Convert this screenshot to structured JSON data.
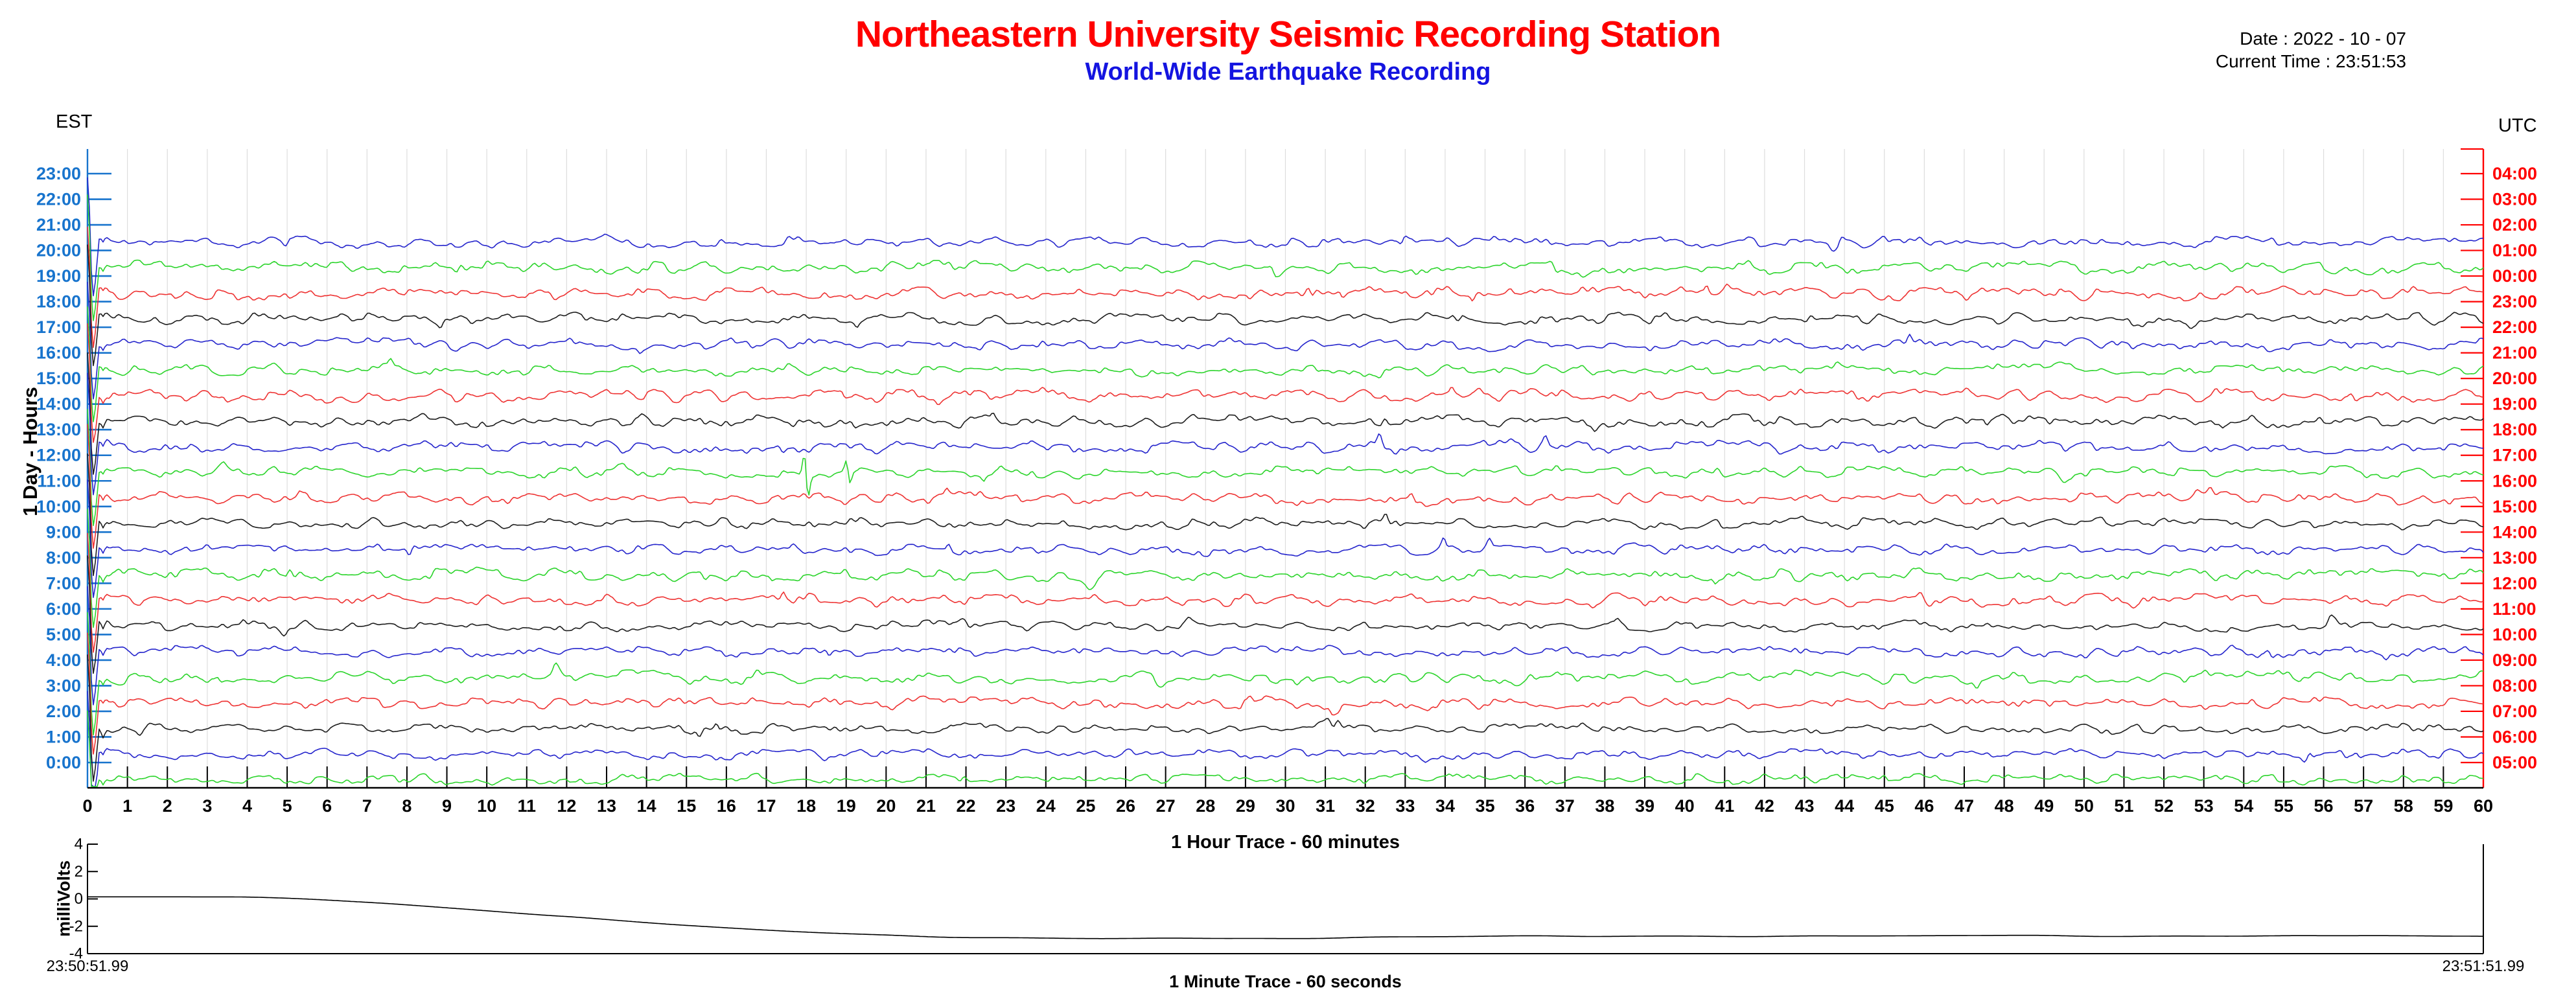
{
  "header": {
    "title": "Northeastern University Seismic Recording Station",
    "subtitle": "World-Wide Earthquake Recording",
    "date_label": "Date : 2022 - 10 - 07",
    "time_label": "Current Time : 23:51:53",
    "left_timezone": "EST",
    "right_timezone": "UTC"
  },
  "colors": {
    "title_red": "#FF0000",
    "subtitle_blue": "#1414E0",
    "left_axis_blue": "#1874CD",
    "right_axis_red": "#FF0000",
    "grid_gray": "#DDDDDD",
    "axis_black": "#000000",
    "trace_palette": {
      "blue": "#2424CC",
      "green": "#2BD42B",
      "red": "#EE3232",
      "black": "#1C1C1C"
    }
  },
  "chart_data": [
    {
      "type": "line",
      "name": "helicorder-24h",
      "description": "24-hour helicorder: one seismic trace per hour, baseline slightly above each hour tick; top 3 hour rows empty; each trace begins with a large settling transient at minute 0; one extra partial-row trace below 0:00",
      "xlabel": "1 Hour Trace - 60 minutes",
      "ylabel": "1 Day - Hours",
      "x_ticks": {
        "min": 0,
        "max": 60,
        "step": 1
      },
      "left_axis_labels": [
        "23:00",
        "22:00",
        "21:00",
        "20:00",
        "19:00",
        "18:00",
        "17:00",
        "16:00",
        "15:00",
        "14:00",
        "13:00",
        "12:00",
        "11:00",
        "10:00",
        "9:00",
        "8:00",
        "7:00",
        "6:00",
        "5:00",
        "4:00",
        "3:00",
        "2:00",
        "1:00",
        "0:00"
      ],
      "right_axis_labels": [
        "04:00",
        "03:00",
        "02:00",
        "01:00",
        "00:00",
        "23:00",
        "22:00",
        "21:00",
        "20:00",
        "19:00",
        "18:00",
        "17:00",
        "16:00",
        "15:00",
        "14:00",
        "13:00",
        "12:00",
        "11:00",
        "10:00",
        "09:00",
        "08:00",
        "07:00",
        "06:00",
        "05:00"
      ],
      "empty_top_rows": 3,
      "traces": [
        {
          "row": 3,
          "est": "20:00",
          "color": "blue",
          "seed": 101,
          "amp": 1.0
        },
        {
          "row": 4,
          "est": "19:00",
          "color": "green",
          "seed": 102,
          "amp": 1.1
        },
        {
          "row": 5,
          "est": "18:00",
          "color": "red",
          "seed": 103,
          "amp": 1.15
        },
        {
          "row": 6,
          "est": "17:00",
          "color": "black",
          "seed": 104,
          "amp": 1.0
        },
        {
          "row": 7,
          "est": "16:00",
          "color": "blue",
          "seed": 105,
          "amp": 1.05
        },
        {
          "row": 8,
          "est": "15:00",
          "color": "green",
          "seed": 106,
          "amp": 1.05
        },
        {
          "row": 9,
          "est": "14:00",
          "color": "red",
          "seed": 107,
          "amp": 1.2
        },
        {
          "row": 10,
          "est": "13:00",
          "color": "black",
          "seed": 108,
          "amp": 1.05
        },
        {
          "row": 11,
          "est": "12:00",
          "color": "blue",
          "seed": 109,
          "amp": 1.1
        },
        {
          "row": 12,
          "est": "11:00",
          "color": "green",
          "seed": 110,
          "amp": 1.05
        },
        {
          "row": 13,
          "est": "10:00",
          "color": "red",
          "seed": 111,
          "amp": 1.1
        },
        {
          "row": 14,
          "est": "9:00",
          "color": "black",
          "seed": 112,
          "amp": 0.95
        },
        {
          "row": 15,
          "est": "8:00",
          "color": "blue",
          "seed": 113,
          "amp": 1.0
        },
        {
          "row": 16,
          "est": "7:00",
          "color": "green",
          "seed": 114,
          "amp": 1.15
        },
        {
          "row": 17,
          "est": "6:00",
          "color": "red",
          "seed": 115,
          "amp": 1.1
        },
        {
          "row": 18,
          "est": "5:00",
          "color": "black",
          "seed": 116,
          "amp": 0.9
        },
        {
          "row": 19,
          "est": "4:00",
          "color": "blue",
          "seed": 117,
          "amp": 1.0
        },
        {
          "row": 20,
          "est": "3:00",
          "color": "green",
          "seed": 118,
          "amp": 1.1
        },
        {
          "row": 21,
          "est": "2:00",
          "color": "red",
          "seed": 119,
          "amp": 1.0
        },
        {
          "row": 22,
          "est": "1:00",
          "color": "black",
          "seed": 120,
          "amp": 0.9
        },
        {
          "row": 23,
          "est": "0:00",
          "color": "blue",
          "seed": 121,
          "amp": 0.95
        },
        {
          "row": 24,
          "est": "",
          "color": "green",
          "seed": 122,
          "amp": 0.9
        }
      ],
      "events": [
        {
          "row": 12,
          "minute": 18.0,
          "amplitude": 48
        },
        {
          "row": 12,
          "minute": 19.05,
          "amplitude": 26
        }
      ]
    },
    {
      "type": "line",
      "name": "minute-trace",
      "xlabel": "1 Minute Trace  - 60 seconds",
      "ylabel": "milliVolts",
      "ylim": [
        -4,
        4
      ],
      "y_ticks": [
        4,
        2,
        0,
        -2,
        -4
      ],
      "x_span_seconds": 60,
      "start_time": "23:50:51.99",
      "end_time": "23:51:51.99",
      "points": [
        [
          0,
          0.15
        ],
        [
          2.5,
          0.15
        ],
        [
          4.5,
          0.1
        ],
        [
          7,
          -0.25
        ],
        [
          9.5,
          -0.75
        ],
        [
          12,
          -1.3
        ],
        [
          14.5,
          -1.85
        ],
        [
          17,
          -2.3
        ],
        [
          19.5,
          -2.62
        ],
        [
          22,
          -2.8
        ],
        [
          25,
          -2.9
        ],
        [
          28,
          -2.9
        ],
        [
          31,
          -2.85
        ],
        [
          34,
          -2.78
        ],
        [
          37,
          -2.72
        ],
        [
          40,
          -2.7
        ],
        [
          43,
          -2.73
        ],
        [
          46,
          -2.7
        ],
        [
          49,
          -2.68
        ],
        [
          52,
          -2.72
        ],
        [
          55,
          -2.66
        ],
        [
          57.5,
          -2.7
        ],
        [
          60,
          -2.72
        ]
      ]
    }
  ]
}
